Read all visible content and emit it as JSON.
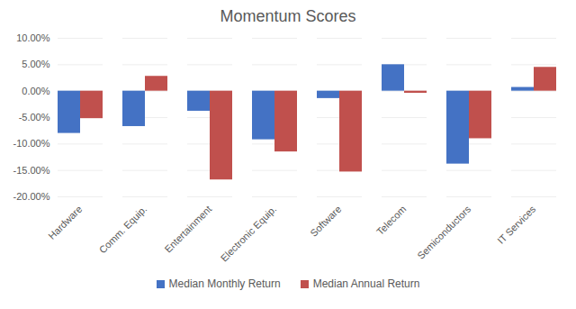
{
  "chart_data": {
    "type": "bar",
    "title": "Momentum Scores",
    "categories": [
      "Hardware",
      "Comm. Equip.",
      "Entertainment",
      "Electronic Equip.",
      "Software",
      "Telecom",
      "Semiconductors",
      "IT Services"
    ],
    "series": [
      {
        "name": "Median Monthly Return",
        "color": "#4472c4",
        "values": [
          -8.0,
          -6.7,
          -3.8,
          -9.2,
          -1.4,
          5.0,
          -13.8,
          0.7
        ]
      },
      {
        "name": "Median Annual Return",
        "color": "#c0504d",
        "values": [
          -5.2,
          2.8,
          -16.8,
          -11.5,
          -15.3,
          -0.4,
          -9.0,
          4.5
        ]
      }
    ],
    "ylim": [
      -20,
      10
    ],
    "yticks": [
      {
        "value": -20,
        "label": "-20.00%"
      },
      {
        "value": -15,
        "label": "-15.00%"
      },
      {
        "value": -10,
        "label": "-10.00%"
      },
      {
        "value": -5,
        "label": "-5.00%"
      },
      {
        "value": 0,
        "label": "0.00%"
      },
      {
        "value": 5,
        "label": "5.00%"
      },
      {
        "value": 10,
        "label": "10.00%"
      }
    ],
    "grid": true,
    "legend": "bottom"
  }
}
